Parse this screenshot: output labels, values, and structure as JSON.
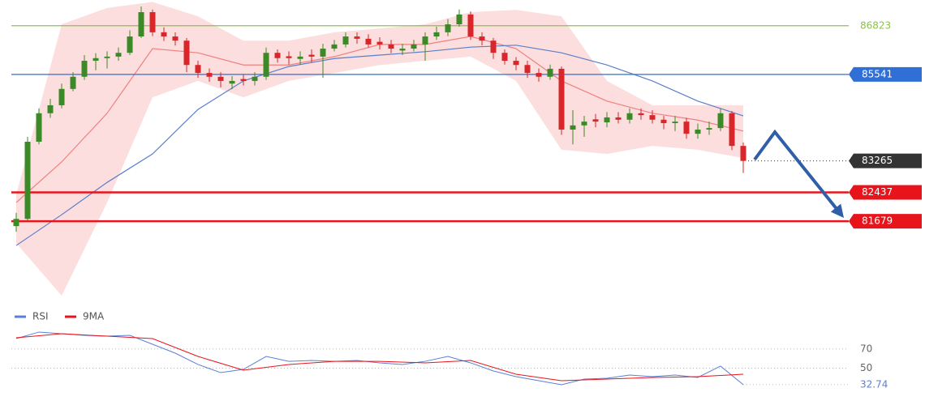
{
  "chart_data": [
    {
      "type": "candlestick",
      "xlim": [
        0,
        64
      ],
      "ylim": [
        79400,
        87500
      ],
      "up_color": "#3c8a27",
      "down_color": "#d9262b",
      "open": [
        81550,
        81740,
        83770,
        84520,
        84730,
        85160,
        85480,
        85900,
        85970,
        86010,
        86110,
        86540,
        87180,
        86650,
        86540,
        86430,
        85790,
        85580,
        85480,
        85300,
        85420,
        85370,
        85480,
        86110,
        86020,
        85950,
        86060,
        86010,
        86220,
        86330,
        86540,
        86480,
        86400,
        86330,
        86170,
        86220,
        86330,
        86540,
        86650,
        86860,
        87120,
        86540,
        86430,
        86110,
        85900,
        85790,
        85580,
        85480,
        85690,
        84090,
        84200,
        84360,
        84280,
        84410,
        84350,
        84520,
        84470,
        84350,
        84260,
        84300,
        83980,
        84090,
        84130,
        84520,
        83660
      ],
      "high": [
        81900,
        83900,
        84650,
        84900,
        85300,
        85600,
        86050,
        86100,
        86150,
        86250,
        86700,
        87330,
        87250,
        86780,
        86650,
        86500,
        85900,
        85700,
        85600,
        85500,
        85550,
        85600,
        86250,
        86200,
        86150,
        86150,
        86200,
        86350,
        86450,
        86650,
        86650,
        86600,
        86520,
        86450,
        86350,
        86450,
        86650,
        86800,
        87000,
        87250,
        87200,
        86650,
        86500,
        86200,
        86000,
        85900,
        85700,
        85800,
        85750,
        84600,
        84450,
        84500,
        84550,
        84550,
        84650,
        84650,
        84600,
        84450,
        84450,
        84400,
        84250,
        84300,
        84650,
        84580,
        83750
      ],
      "low": [
        81400,
        81700,
        83700,
        84400,
        84650,
        85100,
        85400,
        85650,
        85700,
        85900,
        86050,
        86500,
        86550,
        86420,
        86300,
        85600,
        85450,
        85350,
        85200,
        85150,
        85250,
        85250,
        85400,
        85850,
        85800,
        85800,
        85850,
        85450,
        86150,
        86250,
        86350,
        86250,
        86200,
        86100,
        86050,
        86150,
        85900,
        86450,
        86550,
        86800,
        86450,
        86300,
        85950,
        85800,
        85650,
        85450,
        85350,
        85400,
        83950,
        83700,
        83900,
        84150,
        84150,
        84250,
        84250,
        84350,
        84250,
        84100,
        84050,
        83850,
        83850,
        83950,
        84050,
        83550,
        82950
      ],
      "close": [
        81740,
        83770,
        84520,
        84730,
        85160,
        85480,
        85900,
        85970,
        86010,
        86110,
        86540,
        87180,
        86650,
        86540,
        86430,
        85790,
        85580,
        85480,
        85370,
        85370,
        85370,
        85480,
        86110,
        85970,
        85970,
        86010,
        86010,
        86220,
        86330,
        86540,
        86480,
        86330,
        86330,
        86220,
        86220,
        86330,
        86540,
        86650,
        86860,
        87120,
        86540,
        86430,
        86110,
        85900,
        85790,
        85580,
        85480,
        85690,
        84090,
        84200,
        84300,
        84300,
        84410,
        84350,
        84520,
        84470,
        84350,
        84260,
        84300,
        83980,
        84090,
        84130,
        84520,
        83660,
        83265
      ],
      "band": {
        "color": "#fbd3d3",
        "x": [
          0,
          4,
          8,
          12,
          16,
          20,
          24,
          28,
          32,
          36,
          40,
          44,
          48,
          52,
          56,
          60,
          64
        ],
        "upper": [
          82380,
          86860,
          87290,
          87450,
          87070,
          86430,
          86430,
          86650,
          86750,
          86860,
          87180,
          87240,
          87070,
          85370,
          84730,
          84730,
          84730
        ],
        "lower": [
          81100,
          79720,
          82170,
          84940,
          85370,
          84940,
          85370,
          85580,
          85790,
          85900,
          86010,
          85370,
          83560,
          83450,
          83660,
          83560,
          83340
        ]
      },
      "lines": [
        {
          "color": "#f08080",
          "x": [
            0,
            4,
            8,
            12,
            16,
            20,
            24,
            28,
            32,
            36,
            40,
            44,
            48,
            52,
            56,
            60,
            64
          ],
          "values": [
            82170,
            83240,
            84520,
            86220,
            86110,
            85790,
            85790,
            86010,
            86330,
            86330,
            86540,
            86220,
            85370,
            84840,
            84520,
            84340,
            84050
          ]
        },
        {
          "color": "#5a7fc8",
          "x": [
            0,
            4,
            8,
            12,
            16,
            20,
            24,
            28,
            32,
            36,
            40,
            44,
            48,
            52,
            56,
            60,
            64
          ],
          "values": [
            81040,
            81850,
            82700,
            83450,
            84620,
            85370,
            85750,
            85960,
            86050,
            86140,
            86260,
            86310,
            86110,
            85790,
            85370,
            84840,
            84450
          ]
        }
      ],
      "levels": [
        {
          "value": 86823,
          "color": "#8bc34a",
          "boxed": false
        },
        {
          "value": 85541,
          "color": "#2f6fd6",
          "boxed": true
        },
        {
          "value": 82437,
          "color": "#e8141b",
          "boxed": true
        },
        {
          "value": 81679,
          "color": "#e8141b",
          "boxed": true
        }
      ],
      "last_color": "#333333"
    },
    {
      "type": "line",
      "xlim": [
        0,
        64
      ],
      "ylim": [
        20,
        96
      ],
      "yticks": [
        70,
        50
      ],
      "grid": true,
      "series": [
        {
          "name": "RSI",
          "color": "#5b7fd6",
          "x": [
            0,
            2,
            4,
            6,
            8,
            10,
            12,
            14,
            16,
            18,
            20,
            22,
            24,
            26,
            28,
            30,
            32,
            34,
            36,
            38,
            40,
            42,
            44,
            46,
            48,
            50,
            52,
            54,
            56,
            58,
            60,
            62,
            64
          ],
          "values": [
            80.8,
            87.6,
            85.9,
            84.2,
            83.3,
            84.2,
            74.9,
            65.6,
            53.8,
            45.3,
            48.7,
            62.2,
            57.1,
            58.0,
            57.1,
            58.0,
            55.5,
            53.8,
            57.1,
            62.2,
            55.5,
            47.0,
            41.1,
            36.9,
            32.7,
            38.6,
            39.4,
            42.8,
            41.1,
            42.8,
            40.3,
            52.1,
            32.74
          ]
        },
        {
          "name": "9MA",
          "color": "#e8141b",
          "x": [
            0,
            4,
            8,
            12,
            16,
            20,
            24,
            28,
            32,
            36,
            40,
            44,
            48,
            52,
            56,
            60,
            64
          ],
          "values": [
            81.6,
            85.9,
            83.3,
            80.8,
            62.2,
            47.9,
            53.8,
            57.1,
            57.1,
            55.5,
            58.0,
            43.6,
            36.9,
            38.6,
            40.3,
            41.1,
            43.6
          ]
        }
      ]
    }
  ]
}
